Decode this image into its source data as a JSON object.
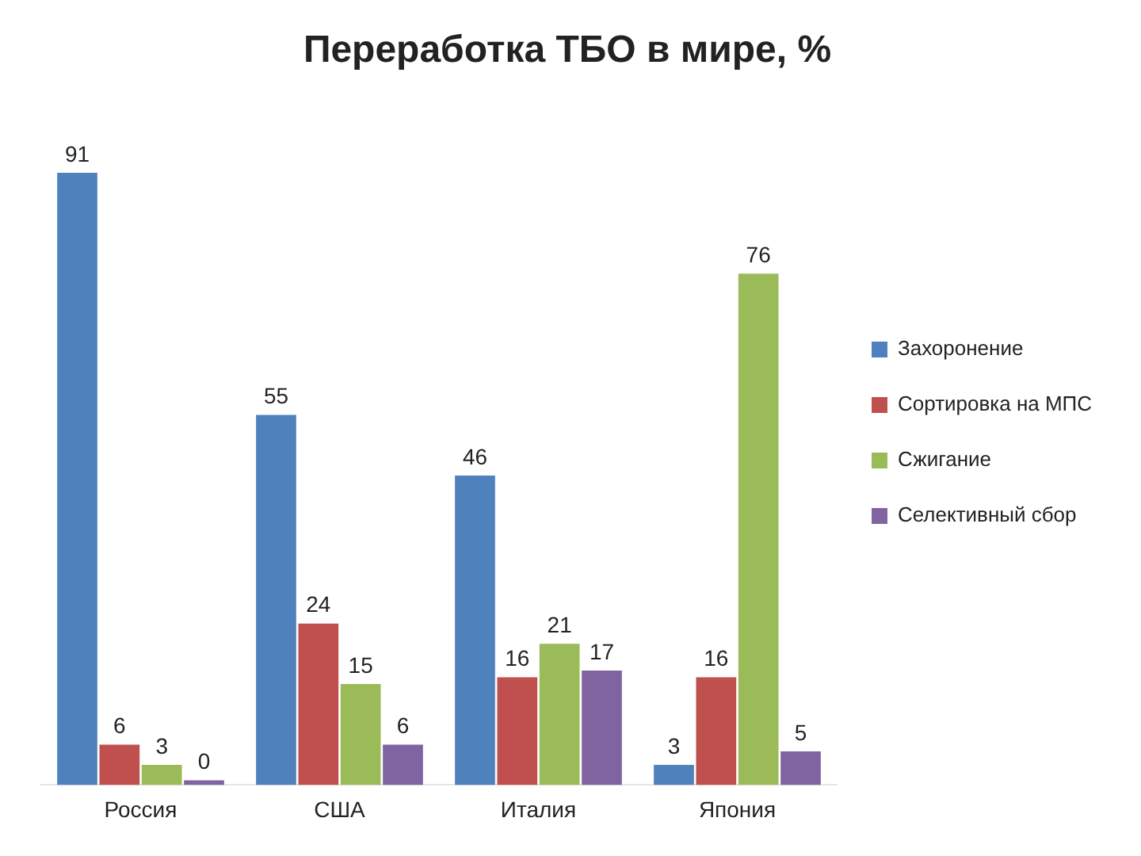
{
  "chart_data": {
    "type": "bar",
    "title": "Переработка ТБО в мире, %",
    "categories": [
      "Россия",
      "США",
      "Италия",
      "Япония"
    ],
    "series": [
      {
        "name": "Захоронение",
        "color": "#4f81bd",
        "values": [
          91,
          55,
          46,
          3
        ]
      },
      {
        "name": "Сортировка на МПС",
        "color": "#c0504d",
        "values": [
          6,
          24,
          16,
          16
        ]
      },
      {
        "name": "Сжигание",
        "color": "#9bbb59",
        "values": [
          3,
          15,
          21,
          76
        ]
      },
      {
        "name": "Селективный сбор",
        "color": "#8064a2",
        "values": [
          0,
          6,
          17,
          5
        ]
      }
    ],
    "data_labels": true,
    "legend": "right",
    "grid": false,
    "tick_labels": "x"
  }
}
